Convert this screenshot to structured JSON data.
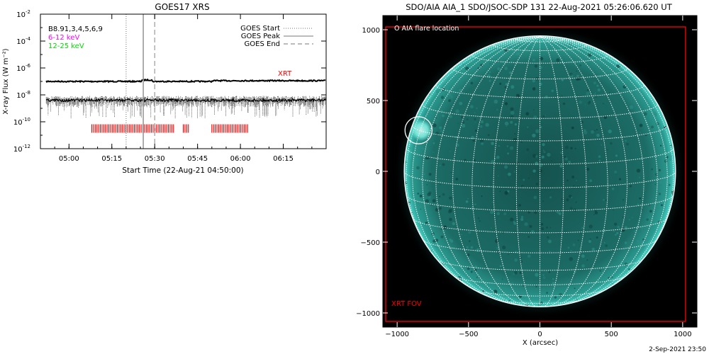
{
  "footer": {
    "timestamp": "2-Sep-2021 23:50"
  },
  "chart_data": [
    {
      "type": "line",
      "title": "GOES17 XRS",
      "xlabel": "Start Time (22-Aug-21 04:50:00)",
      "ylabel": "X-ray Flux (W m⁻²)",
      "ylim_exp": [
        -12,
        -2
      ],
      "y_scale": "log",
      "y_ticks": [
        {
          "base": "10",
          "exp": "-2",
          "value": -2
        },
        {
          "base": "10",
          "exp": "-4",
          "value": -4
        },
        {
          "base": "10",
          "exp": "-6",
          "value": -6
        },
        {
          "base": "10",
          "exp": "-8",
          "value": -8
        },
        {
          "base": "10",
          "exp": "-10",
          "value": -10
        },
        {
          "base": "10",
          "exp": "-12",
          "value": -12
        }
      ],
      "x_range": [
        "04:50",
        "06:30"
      ],
      "x_ticks": [
        {
          "label": "05:00",
          "t": "05:00"
        },
        {
          "label": "05:15",
          "t": "05:15"
        },
        {
          "label": "05:30",
          "t": "05:30"
        },
        {
          "label": "05:45",
          "t": "05:45"
        },
        {
          "label": "06:00",
          "t": "06:00"
        },
        {
          "label": "06:15",
          "t": "06:15"
        }
      ],
      "channel_labels": [
        {
          "text": "B8.91,3,4,5,6,9",
          "color": "#000000"
        },
        {
          "text": "6-12 keV",
          "color": "#ff00ff"
        },
        {
          "text": "12-25 keV",
          "color": "#00dd00"
        }
      ],
      "legend_position": "top-right",
      "legend": [
        {
          "label": "GOES Start",
          "style": "dotted"
        },
        {
          "label": "GOES Peak",
          "style": "solid"
        },
        {
          "label": "GOES End",
          "style": "dashed"
        }
      ],
      "event_lines": {
        "start": "05:20",
        "peak": "05:26",
        "end": "05:30"
      },
      "series": [
        {
          "name": "",
          "level_exp": -7.0,
          "color": "#000000",
          "x_start": "04:52",
          "x_end": "06:30"
        },
        {
          "name": "",
          "level_exp": -8.4,
          "color": "#000000",
          "x_start": "04:52",
          "x_end": "06:30"
        }
      ],
      "xrt_label": "XRT",
      "xrt_label_color": "#ff0000",
      "xrt_level_exp": -10.5,
      "xrt_segments": [
        {
          "start": "05:08",
          "end": "05:37"
        },
        {
          "start": "05:40",
          "end": "05:42"
        },
        {
          "start": "05:50",
          "end": "06:03"
        }
      ]
    },
    {
      "type": "map",
      "title": "SDO/AIA AIA_1 SDO/JSOC-SDP 131 22-Aug-2021 05:26:06.620 UT",
      "xlabel": "X (arcsec)",
      "ylabel": "",
      "xlim": [
        -1100,
        1100
      ],
      "ylim": [
        -1100,
        1100
      ],
      "x_ticks": [
        -1000,
        -500,
        0,
        500,
        1000
      ],
      "y_ticks": [
        -1000,
        -500,
        0,
        500,
        1000
      ],
      "x_tick_labels": [
        "−1000",
        "−500",
        "0",
        "500",
        "1000"
      ],
      "y_tick_labels": [
        "−1000",
        "−500",
        "0",
        "500",
        "1000"
      ],
      "solar_radius_arcsec": 950,
      "grid_spacing_deg": 10,
      "flare_legend": "O AIA flare location",
      "flare_location": {
        "x": -850,
        "y": 290,
        "r": 95
      },
      "xrt_fov_label": "XRT FOV",
      "xrt_fov": {
        "x0": -1080,
        "x1": 1020,
        "y0": -1060,
        "y1": 1020
      },
      "xrt_fov_color": "#ff0000",
      "disk_color": "#1e7f78",
      "limb_glow_color": "#3fe3d3"
    }
  ]
}
